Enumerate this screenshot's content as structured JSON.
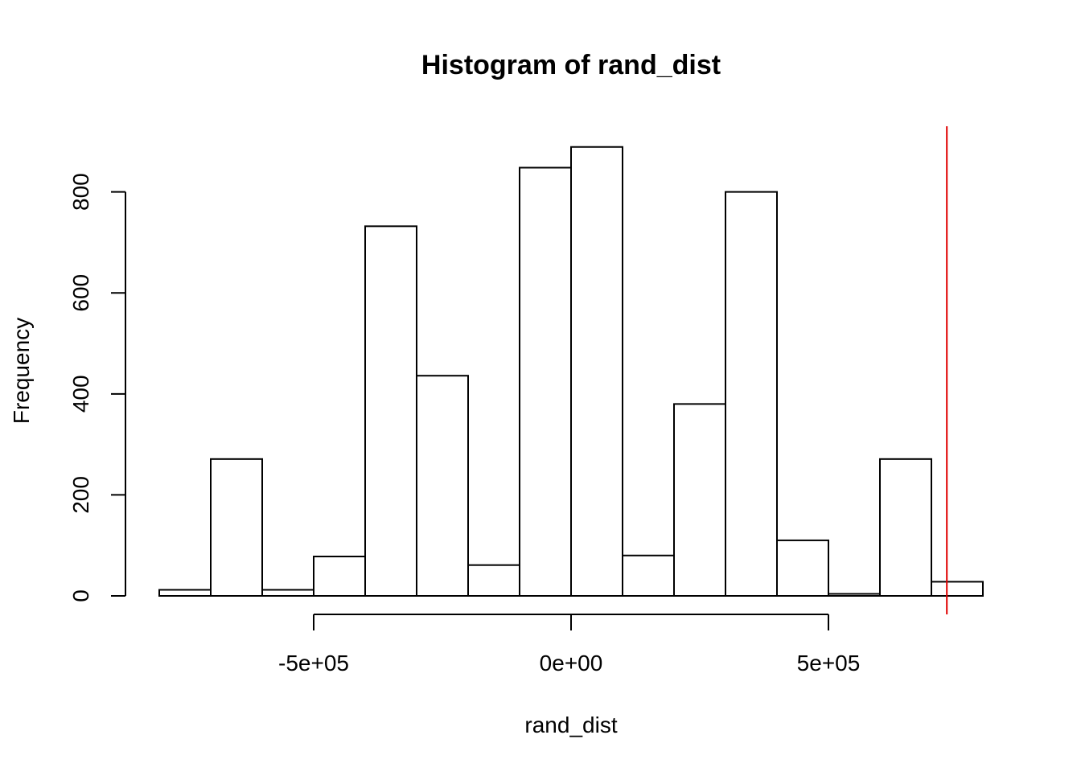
{
  "chart_data": {
    "type": "bar",
    "subtype": "histogram",
    "title": "Histogram of rand_dist",
    "xlabel": "rand_dist",
    "ylabel": "Frequency",
    "bin_edges": [
      -800000,
      -700000,
      -600000,
      -500000,
      -400000,
      -300000,
      -200000,
      -100000,
      0,
      100000,
      200000,
      300000,
      400000,
      500000,
      600000,
      700000,
      800000
    ],
    "values": [
      12,
      271,
      12,
      78,
      732,
      436,
      61,
      848,
      889,
      80,
      380,
      800,
      110,
      4,
      271,
      28
    ],
    "xlim": [
      -800000,
      800000
    ],
    "ylim": [
      0,
      930
    ],
    "x_ticks": [
      -500000,
      0,
      500000
    ],
    "x_tick_labels": [
      "-5e+05",
      "0e+00",
      "5e+05"
    ],
    "y_ticks": [
      0,
      200,
      400,
      600,
      800
    ],
    "y_tick_labels": [
      "0",
      "200",
      "400",
      "600",
      "800"
    ],
    "reference_line": {
      "x": 730000,
      "color": "#e00000"
    },
    "bar_fill": "#ffffff",
    "bar_stroke": "#000000",
    "grid": false
  }
}
